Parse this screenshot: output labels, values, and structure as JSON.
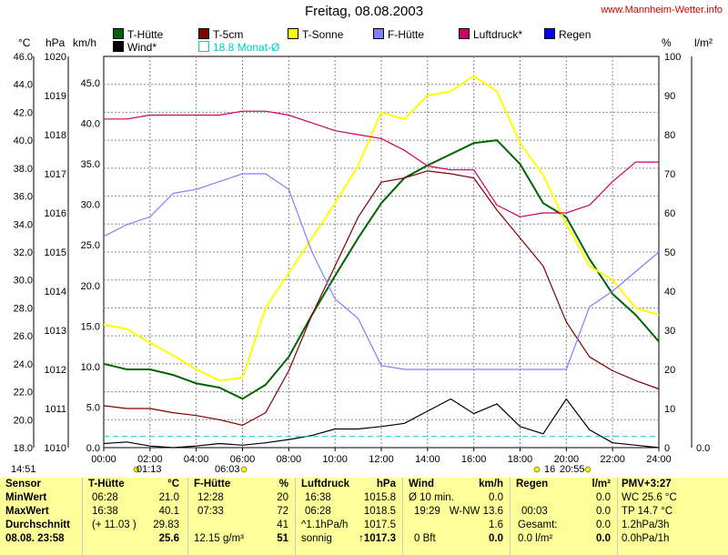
{
  "header": {
    "title": "Freitag, 08.08.2003",
    "site": "www.Mannheim-Wetter.info"
  },
  "legend": [
    {
      "label": "T-Hütte",
      "color": "#006400"
    },
    {
      "label": "T-5cm",
      "color": "#800000"
    },
    {
      "label": "T-Sonne",
      "color": "#ffff00"
    },
    {
      "label": "F-Hütte",
      "color": "#8080ff"
    },
    {
      "label": "Luftdruck*",
      "color": "#cc0066"
    },
    {
      "label": "Regen",
      "color": "#0000ff"
    },
    {
      "label": "Wind*",
      "color": "#000000"
    },
    {
      "label": "18.8 Monat-Ø",
      "color": "#00cccc"
    }
  ],
  "units": {
    "celsius": "°C",
    "hpa": "hPa",
    "kmh": "km/h",
    "percent": "%",
    "lm2": "l/m²"
  },
  "axis_labels": {
    "celsius": [
      "46.0",
      "44.0",
      "42.0",
      "40.0",
      "38.0",
      "36.0",
      "34.0",
      "32.0",
      "30.0",
      "28.0",
      "26.0",
      "24.0",
      "22.0",
      "20.0",
      "18.0"
    ],
    "hpa": [
      "1020",
      "1019",
      "1018",
      "1017",
      "1016",
      "1015",
      "1014",
      "1013",
      "1012",
      "1011",
      "1010"
    ],
    "kmh": [
      "45.0",
      "40.0",
      "35.0",
      "30.0",
      "25.0",
      "20.0",
      "15.0",
      "10.0",
      "5.0",
      "0.0"
    ],
    "percent": [
      "100",
      "90",
      "80",
      "70",
      "60",
      "50",
      "40",
      "30",
      "20",
      "10",
      "0"
    ],
    "lm2": "0.0",
    "time": [
      "00:00",
      "02:00",
      "04:00",
      "06:00",
      "08:00",
      "10:00",
      "12:00",
      "14:00",
      "16:00",
      "18:00",
      "20:00",
      "22:00",
      "24:00"
    ]
  },
  "markers": {
    "left_time": "14:51",
    "t1": "01:13",
    "t2": "06:03",
    "t3": "16",
    "t4": "20:55"
  },
  "chart_data": {
    "type": "line",
    "title": "Freitag, 08.08.2003",
    "x_hours": [
      0,
      1,
      2,
      3,
      4,
      5,
      6,
      7,
      8,
      9,
      10,
      11,
      12,
      13,
      14,
      15,
      16,
      17,
      18,
      19,
      20,
      21,
      22,
      23,
      24
    ],
    "xlim": [
      0,
      24
    ],
    "axes": {
      "celsius": [
        18,
        46
      ],
      "hpa": [
        1010,
        1020
      ],
      "kmh": [
        0,
        48.25
      ],
      "percent": [
        0,
        100
      ]
    },
    "series": [
      {
        "name": "T-Hütte",
        "axis": "celsius",
        "color": "#006400",
        "values": [
          24.0,
          23.6,
          23.6,
          23.2,
          22.6,
          22.3,
          21.5,
          22.5,
          24.5,
          27.5,
          30.3,
          33.0,
          35.5,
          37.3,
          38.2,
          39.0,
          39.8,
          40.0,
          38.3,
          35.5,
          34.5,
          31.5,
          29.0,
          27.5,
          25.6
        ]
      },
      {
        "name": "T-5cm",
        "axis": "celsius",
        "color": "#800000",
        "values": [
          21.0,
          20.8,
          20.8,
          20.5,
          20.3,
          20.0,
          19.6,
          20.5,
          23.5,
          27.5,
          31.0,
          34.5,
          37.0,
          37.3,
          37.8,
          37.6,
          37.3,
          35.0,
          33.0,
          31.0,
          27.0,
          24.5,
          23.5,
          22.8,
          22.2
        ]
      },
      {
        "name": "T-Sonne",
        "axis": "celsius",
        "color": "#ffff00",
        "values": [
          26.8,
          26.5,
          25.5,
          24.6,
          23.6,
          22.8,
          23.0,
          28.0,
          30.5,
          33.0,
          35.5,
          38.2,
          42.0,
          41.5,
          43.2,
          43.5,
          44.6,
          43.5,
          39.8,
          37.5,
          34.0,
          31.0,
          30.0,
          28.0,
          27.5
        ]
      },
      {
        "name": "F-Hütte",
        "axis": "percent",
        "color": "#8080ff",
        "values": [
          54,
          57,
          59,
          65,
          66,
          68,
          70,
          70,
          66,
          50,
          38,
          33,
          21,
          20,
          20,
          20,
          20,
          20,
          20,
          20,
          20,
          36,
          40,
          45,
          50
        ]
      },
      {
        "name": "Luftdruck*",
        "axis": "hpa",
        "color": "#cc0066",
        "values": [
          1018.4,
          1018.4,
          1018.5,
          1018.5,
          1018.5,
          1018.5,
          1018.6,
          1018.6,
          1018.5,
          1018.3,
          1018.1,
          1018.0,
          1017.9,
          1017.6,
          1017.2,
          1017.1,
          1017.1,
          1016.2,
          1015.9,
          1016.0,
          1016.0,
          1016.2,
          1016.8,
          1017.3,
          1017.3
        ]
      },
      {
        "name": "Wind*",
        "axis": "kmh",
        "color": "#000000",
        "values": [
          0.5,
          0.7,
          0.2,
          0.0,
          0.2,
          0.5,
          0.3,
          0.6,
          1.0,
          1.5,
          2.3,
          2.3,
          2.6,
          3.0,
          4.5,
          6.0,
          4.2,
          5.4,
          2.6,
          1.7,
          6.0,
          2.2,
          0.6,
          0.3,
          0.0
        ]
      },
      {
        "name": "18.8 Monat-Ø",
        "axis": "celsius",
        "color": "#00cccc",
        "dashed": true,
        "values": [
          18.8,
          18.8,
          18.8,
          18.8,
          18.8,
          18.8,
          18.8,
          18.8,
          18.8,
          18.8,
          18.8,
          18.8,
          18.8,
          18.8,
          18.8,
          18.8,
          18.8,
          18.8,
          18.8,
          18.8,
          18.8,
          18.8,
          18.8,
          18.8,
          18.8
        ]
      }
    ],
    "grid": true
  },
  "table": {
    "sensor": {
      "head": "Sensor",
      "rows": [
        "MinWert",
        "MaxWert",
        "Durchschnitt",
        "08.08. 23:58"
      ]
    },
    "thuette": {
      "head": "T-Hütte",
      "unit": "°C",
      "rows": [
        [
          "06:28",
          "21.0"
        ],
        [
          "16:38",
          "40.1"
        ],
        [
          "(+ 11.03 )",
          "29.83"
        ],
        [
          "",
          "25.6"
        ]
      ]
    },
    "fhuette": {
      "head": "F-Hütte",
      "unit": "%",
      "rows": [
        [
          "12:28",
          "20"
        ],
        [
          "07:33",
          "72"
        ],
        [
          "",
          "41"
        ],
        [
          "12.15 g/m³",
          "51"
        ]
      ]
    },
    "luftdruck": {
      "head": "Luftdruck",
      "unit": "hPa",
      "rows": [
        [
          "16:38",
          "1015.8"
        ],
        [
          "06:28",
          "1018.5"
        ],
        [
          "^1.1hPa/h",
          "1017.5"
        ],
        [
          "sonnig",
          "↑1017.3"
        ]
      ]
    },
    "wind": {
      "head": "Wind",
      "unit": "km/h",
      "rows": [
        [
          "Ø 10 min.",
          "",
          "0.0"
        ],
        [
          "19:29",
          "W-NW 13.6",
          ""
        ],
        [
          "",
          "",
          "1.6"
        ],
        [
          "0 Bft",
          "",
          "0.0"
        ]
      ]
    },
    "regen": {
      "head": "Regen",
      "unit": "l/m²",
      "rows": [
        [
          "",
          "0.0"
        ],
        [
          "00:03",
          "0.0"
        ],
        [
          "Gesamt:",
          "0.0"
        ],
        [
          "0.0 l/m²",
          "0.0"
        ]
      ]
    },
    "pmv": {
      "head": "PMV+3:27",
      "rows": [
        "WC 25.6 °C",
        "TP 14.7 °C",
        "1.2hPa/3h",
        "0.0hPa/1h"
      ]
    }
  }
}
